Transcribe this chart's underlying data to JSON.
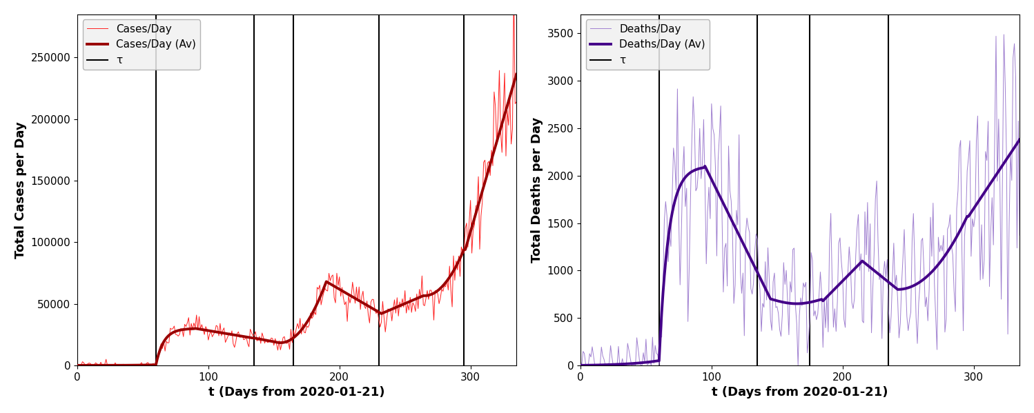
{
  "left": {
    "ylabel": "Total Cases per Day",
    "xlabel": "t (Days from 2020-01-21)",
    "vlines": [
      60,
      135,
      165,
      230,
      295
    ],
    "ylim": [
      0,
      285000
    ],
    "xlim": [
      0,
      335
    ],
    "xticks": [
      0,
      100,
      200,
      300
    ],
    "yticks": [
      0,
      50000,
      100000,
      150000,
      200000,
      250000
    ],
    "yticklabels": [
      "0",
      "50000",
      "100000",
      "150000",
      "200000",
      "250000"
    ],
    "legend": [
      "Cases/Day",
      "Cases/Day (Av)",
      "τ"
    ],
    "raw_color": "#FF2020",
    "avg_color": "#990000",
    "vline_color": "black"
  },
  "right": {
    "ylabel": "Total Deaths per Day",
    "xlabel": "t (Days from 2020-01-21)",
    "vlines": [
      60,
      135,
      175,
      235
    ],
    "ylim": [
      0,
      3700
    ],
    "xlim": [
      0,
      335
    ],
    "xticks": [
      0,
      100,
      200,
      300
    ],
    "yticks": [
      0,
      500,
      1000,
      1500,
      2000,
      2500,
      3000,
      3500
    ],
    "yticklabels": [
      "0",
      "500",
      "1000",
      "1500",
      "2000",
      "2500",
      "3000",
      "3500"
    ],
    "legend": [
      "Deaths/Day",
      "Deaths/Day (Av)",
      "τ"
    ],
    "raw_color": "#A080D0",
    "avg_color": "#440088",
    "vline_color": "black"
  },
  "fig_width": 14.98,
  "fig_height": 5.99,
  "dpi": 100
}
